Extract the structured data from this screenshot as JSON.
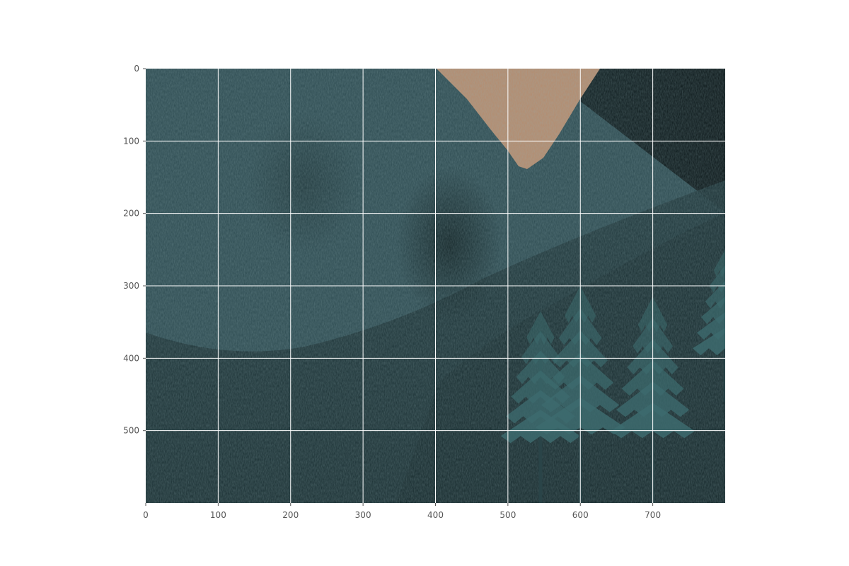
{
  "chart_data": {
    "type": "image",
    "title": "",
    "xlabel": "",
    "ylabel": "",
    "xlim": [
      0,
      800
    ],
    "ylim": [
      600,
      0
    ],
    "grid": true,
    "x_ticks": [
      0,
      100,
      200,
      300,
      400,
      500,
      600,
      700
    ],
    "y_ticks": [
      0,
      100,
      200,
      300,
      400,
      500
    ],
    "grid_color": "#ffffff",
    "tick_label_color": "#555555"
  },
  "scene": {
    "content": "game-terrain-render",
    "colors": {
      "grass_light": "#2f4f55",
      "grass_dark": "#1b3034",
      "shadow": "#0b1a1c",
      "sky": "#b58b6d",
      "tree_foliage": "#3d6b6e",
      "tree_trunk": "#2a4448"
    },
    "trees": [
      {
        "x": 545,
        "top": 335,
        "trunk_bottom": 600,
        "spread": 55
      },
      {
        "x": 600,
        "top": 300,
        "trunk_bottom": 600,
        "spread": 62
      },
      {
        "x": 700,
        "top": 315,
        "trunk_bottom": 600,
        "spread": 58
      },
      {
        "x": 800,
        "top": 250,
        "trunk_bottom": 460,
        "spread": 45
      }
    ]
  }
}
